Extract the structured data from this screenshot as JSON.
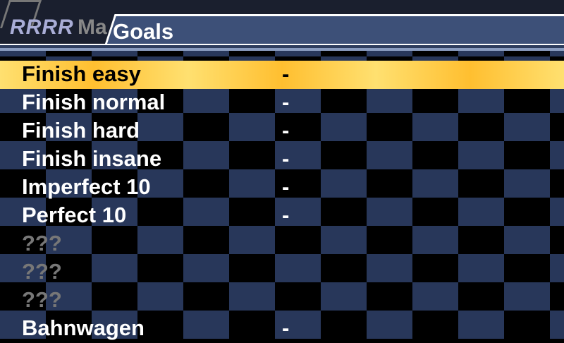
{
  "header": {
    "logo": "RRRR",
    "tab_partial": "Ma",
    "title": "Goals"
  },
  "colors": {
    "highlight": "#ffc830",
    "panel": "#3d5078"
  },
  "goals": [
    {
      "name": "Finish easy",
      "value": "-",
      "selected": true
    },
    {
      "name": "Finish normal",
      "value": "-"
    },
    {
      "name": "Finish hard",
      "value": "-"
    },
    {
      "name": "Finish insane",
      "value": "-"
    },
    {
      "name": "Imperfect 10",
      "value": "-"
    },
    {
      "name": "Perfect 10",
      "value": "-"
    },
    {
      "name": "???",
      "value": "",
      "locked": true
    },
    {
      "name": "???",
      "value": "",
      "locked": true
    },
    {
      "name": "???",
      "value": "",
      "locked": true
    },
    {
      "name": "Bahnwagen",
      "value": "-"
    }
  ]
}
